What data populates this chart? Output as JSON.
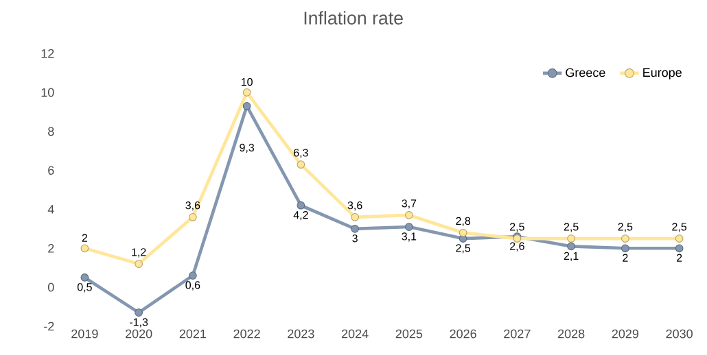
{
  "chart_data": {
    "type": "line",
    "title": "Inflation rate",
    "categories": [
      "2019",
      "2020",
      "2021",
      "2022",
      "2023",
      "2024",
      "2025",
      "2026",
      "2027",
      "2028",
      "2029",
      "2030"
    ],
    "series": [
      {
        "name": "Greece",
        "color": "#8497b0",
        "values": [
          0.5,
          -1.3,
          0.6,
          9.3,
          4.2,
          3,
          3.1,
          2.5,
          2.6,
          2.1,
          2,
          2
        ],
        "value_labels": [
          "0,5",
          "-1,3",
          "0,6",
          "9,3",
          "4,2",
          "3",
          "3,1",
          "2,5",
          "2,6",
          "2,1",
          "2",
          "2"
        ]
      },
      {
        "name": "Europe",
        "color": "#ffe699",
        "values": [
          2,
          1.2,
          3.6,
          10,
          6.3,
          3.6,
          3.7,
          2.8,
          2.5,
          2.5,
          2.5,
          2.5
        ],
        "value_labels": [
          "2",
          "1,2",
          "3,6",
          "10",
          "6,3",
          "3,6",
          "3,7",
          "2,8",
          "2,5",
          "2,5",
          "2,5",
          "2,5"
        ]
      }
    ],
    "ylim": [
      -2,
      12
    ],
    "yticks": [
      -2,
      0,
      2,
      4,
      6,
      8,
      10,
      12
    ],
    "grid": false,
    "legend": "top right",
    "marker": "circle",
    "line_style": "solid"
  }
}
